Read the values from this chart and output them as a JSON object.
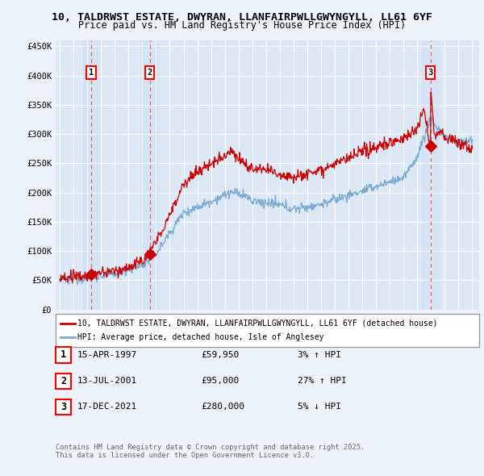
{
  "title": "10, TALDRWST ESTATE, DWYRAN, LLANFAIRPWLLGWYNGYLL, LL61 6YF",
  "subtitle": "Price paid vs. HM Land Registry's House Price Index (HPI)",
  "yticks": [
    0,
    50000,
    100000,
    150000,
    200000,
    250000,
    300000,
    350000,
    400000,
    450000
  ],
  "ytick_labels": [
    "£0",
    "£50K",
    "£100K",
    "£150K",
    "£200K",
    "£250K",
    "£300K",
    "£350K",
    "£400K",
    "£450K"
  ],
  "background_color": "#eef2fb",
  "plot_bg_color": "#dce8f5",
  "grid_color": "#ffffff",
  "red_line_color": "#cc0000",
  "blue_line_color": "#7aaad0",
  "dashed_line_color": "#e05050",
  "sale_points": [
    {
      "date_year": 1997.29,
      "price": 59950,
      "label": "1"
    },
    {
      "date_year": 2001.54,
      "price": 95000,
      "label": "2"
    },
    {
      "date_year": 2021.96,
      "price": 280000,
      "label": "3"
    }
  ],
  "legend_red_label": "10, TALDRWST ESTATE, DWYRAN, LLANFAIRPWLLGWYNGYLL, LL61 6YF (detached house)",
  "legend_blue_label": "HPI: Average price, detached house, Isle of Anglesey",
  "table_rows": [
    {
      "num": "1",
      "date": "15-APR-1997",
      "price": "£59,950",
      "hpi": "3% ↑ HPI"
    },
    {
      "num": "2",
      "date": "13-JUL-2001",
      "price": "£95,000",
      "hpi": "27% ↑ HPI"
    },
    {
      "num": "3",
      "date": "17-DEC-2021",
      "price": "£280,000",
      "hpi": "5% ↓ HPI"
    }
  ],
  "footnote": "Contains HM Land Registry data © Crown copyright and database right 2025.\nThis data is licensed under the Open Government Licence v3.0."
}
